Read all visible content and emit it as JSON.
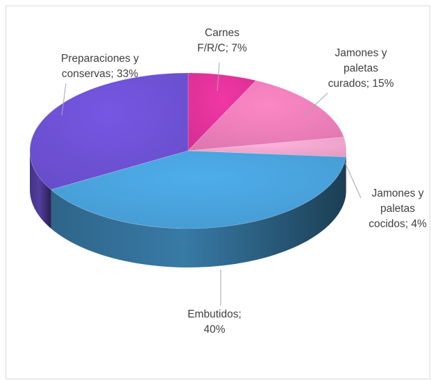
{
  "chart_data": {
    "type": "pie",
    "style": "3d-exploded-none",
    "slices": [
      {
        "label": "Carnes F/R/C",
        "value": 7,
        "display": [
          "Carnes",
          "F/R/C; 7%"
        ],
        "color": "#e3339b"
      },
      {
        "label": "Jamones y paletas curados",
        "value": 15,
        "display": [
          "Jamones y",
          "paletas",
          "curados; 15%"
        ],
        "color": "#ee7fbb"
      },
      {
        "label": "Jamones y paletas cocidos",
        "value": 4,
        "display": [
          "Jamones y",
          "paletas",
          "cocidos; 4%"
        ],
        "color": "#f3a7cf"
      },
      {
        "label": "Embutidos",
        "value": 40,
        "display": [
          "Embutidos;",
          "40%"
        ],
        "color": "#4aa3dd"
      },
      {
        "label": "Preparaciones y conservas",
        "value": 33,
        "display": [
          "Preparaciones y",
          "conservas; 33%"
        ],
        "color": "#6e52d6"
      }
    ]
  }
}
